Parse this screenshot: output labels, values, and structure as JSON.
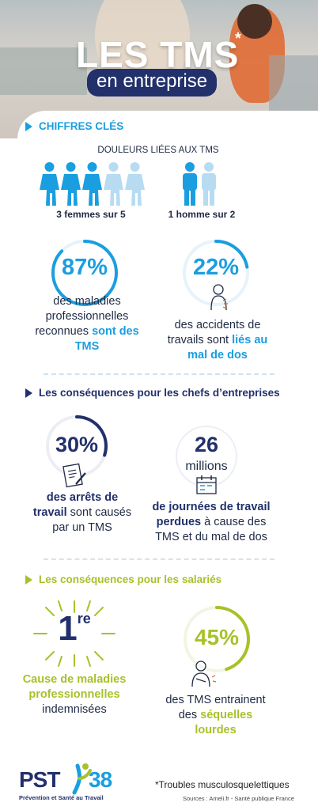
{
  "header": {
    "title": "LES TMS",
    "asterisk": "*",
    "subtitle": "en entreprise"
  },
  "section1": {
    "heading": "CHIFFRES CLÉS",
    "subheading": "DOULEURS LIÉES AUX TMS",
    "women_caption": "3 femmes sur 5",
    "men_caption": "1 homme sur 2",
    "stat1": {
      "value": "87%",
      "fraction": 0.87,
      "text_plain": "des maladies professionnelles reconnues ",
      "text_highlight": "sont des TMS"
    },
    "stat2": {
      "value": "22%",
      "fraction": 0.22,
      "text_plain": "des accidents de travails sont ",
      "text_highlight": "liés au mal de dos"
    }
  },
  "section2": {
    "heading": "Les conséquences pour les chefs d’entreprises",
    "stat1": {
      "value": "30%",
      "fraction": 0.3,
      "text_highlight": "des arrêts de travail",
      "text_plain": " sont causés par un TMS"
    },
    "stat2": {
      "value": "26",
      "unit": "millions",
      "text_highlight": "de journées de travail perdues",
      "text_plain": " à cause des TMS et du mal de dos"
    }
  },
  "section3": {
    "heading": "Les conséquences pour les salariés",
    "stat1": {
      "value": "1",
      "sup": "re",
      "text_highlight": "Cause de maladies professionnelles",
      "text_plain": " indemnisées"
    },
    "stat2": {
      "value": "45%",
      "fraction": 0.45,
      "text_plain": "des TMS entrainent des ",
      "text_highlight": "séquelles lourdes"
    }
  },
  "footer": {
    "logo_left": "PST",
    "logo_right": "38",
    "logo_tagline": "Prévention et Santé au Travail",
    "footnote": "*Troubles musculosquelettiques",
    "sources": "Sources : Ameli.fr - Santé publique France"
  },
  "colors": {
    "blue": "#1a9ee0",
    "light_blue": "#b7dcf2",
    "navy": "#22306b",
    "lime": "#a6c22a",
    "orange": "#e0652a"
  }
}
